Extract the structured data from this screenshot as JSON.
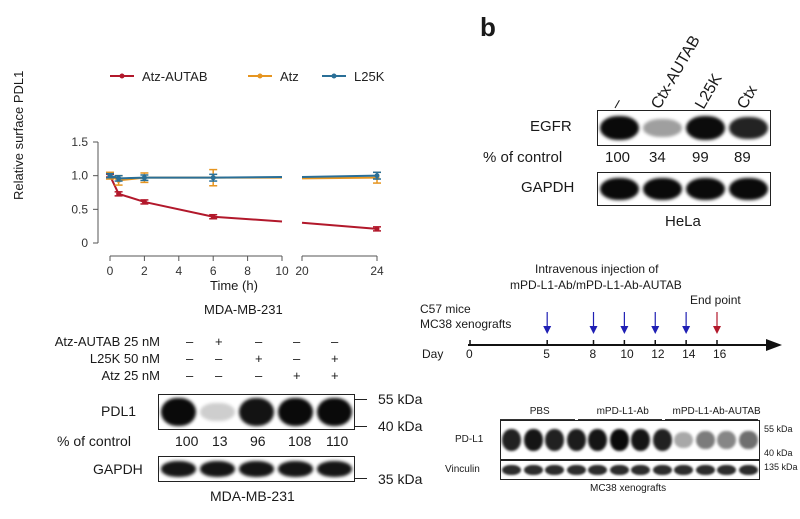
{
  "panel_a": {
    "chart_data": {
      "type": "line",
      "ylabel": "Relative surface PDL1",
      "xlabel": "Time (h)",
      "x_ticks": [
        "0",
        "2",
        "4",
        "6",
        "8",
        "10",
        "20",
        "24"
      ],
      "y_ticks": [
        "0",
        "0.5",
        "1.0",
        "1.5"
      ],
      "ylim": [
        0,
        1.5
      ],
      "series": [
        {
          "name": "Atz-AUTAB",
          "color": "#b2182b",
          "x": [
            0,
            0.5,
            2,
            6,
            10,
            20,
            24
          ],
          "y": [
            1.0,
            0.73,
            0.61,
            0.39,
            0.32,
            0.3,
            0.21
          ],
          "err": [
            0.02,
            0.03,
            0.03,
            0.03,
            0,
            0,
            0.03
          ]
        },
        {
          "name": "Atz",
          "color": "#e69520",
          "x": [
            0,
            0.5,
            2,
            6,
            10,
            20,
            24
          ],
          "y": [
            1.0,
            0.93,
            0.97,
            0.97,
            0.97,
            0.96,
            0.97
          ],
          "err": [
            0.05,
            0.07,
            0.07,
            0.12,
            0,
            0,
            0.08
          ]
        },
        {
          "name": "L25K",
          "color": "#2a6f97",
          "x": [
            0,
            0.5,
            2,
            6,
            10,
            20,
            24
          ],
          "y": [
            1.0,
            0.96,
            0.97,
            0.97,
            0.98,
            0.98,
            1.0
          ],
          "err": [
            0.03,
            0.04,
            0.04,
            0.05,
            0,
            0,
            0.05
          ]
        }
      ]
    },
    "caption": "MDA-MB-231",
    "treatments": [
      {
        "label": "Atz-AUTAB 25 nM",
        "signs": [
          "–",
          "+",
          "–",
          "–",
          "–"
        ]
      },
      {
        "label": "L25K 50 nM",
        "signs": [
          "–",
          "–",
          "+",
          "–",
          "+"
        ]
      },
      {
        "label": "Atz 25 nM",
        "signs": [
          "–",
          "–",
          "–",
          "+",
          "+"
        ]
      }
    ],
    "pdl1_label": "PDL1",
    "pct_label": "% of control",
    "pct_values": [
      "100",
      "13",
      "96",
      "108",
      "110"
    ],
    "band_intensity": [
      1.0,
      0.13,
      0.96,
      1.0,
      1.0
    ],
    "gapdh_label": "GAPDH",
    "marker_55": "55 kDa",
    "marker_40": "40 kDa",
    "marker_35": "35 kDa",
    "bottom_caption": "MDA-MB-231"
  },
  "panel_b": {
    "letter": "b",
    "lanes": [
      "–",
      "Ctx-AUTAB",
      "L25K",
      "Ctx"
    ],
    "egfr_label": "EGFR",
    "pct_label": "% of control",
    "pct_values": [
      "100",
      "34",
      "99",
      "89"
    ],
    "band_intensity": [
      1.0,
      0.34,
      0.99,
      0.89
    ],
    "gapdh_label": "GAPDH",
    "caption": "HeLa"
  },
  "panel_c": {
    "injection_title_1": "Intravenous injection of",
    "injection_title_2": "mPD-L1-Ab/mPD-L1-Ab-AUTAB",
    "mice_line_1": "C57 mice",
    "mice_line_2": "MC38 xenografts",
    "end_point": "End point",
    "day_label": "Day",
    "days": [
      "0",
      "5",
      "8",
      "10",
      "12",
      "14",
      "16"
    ],
    "injection_days": [
      "5",
      "8",
      "10",
      "12",
      "14"
    ],
    "arrow_color": "#1f1fb4",
    "end_color": "#b2182b",
    "groups": [
      "PBS",
      "mPD-L1-Ab",
      "mPD-L1-Ab-AUTAB"
    ],
    "pdl1_label": "PD-L1",
    "vinculin_label": "Vinculin",
    "marker_55": "55 kDa",
    "marker_40": "40 kDa",
    "marker_135": "135 kDa",
    "caption": "MC38 xenografts"
  }
}
